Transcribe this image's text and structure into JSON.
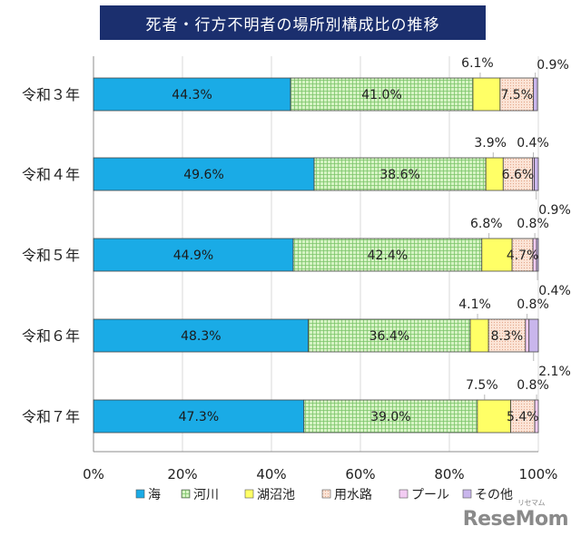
{
  "chart_data": {
    "type": "bar",
    "orientation": "horizontal",
    "stacked": true,
    "title": "死者・行方不明者の場所別構成比の推移",
    "categories": [
      "令和３年",
      "令和４年",
      "令和５年",
      "令和６年",
      "令和７年"
    ],
    "series": [
      {
        "name": "海",
        "color": "#1aabe6",
        "pattern": "solid",
        "values": [
          44.3,
          49.6,
          44.9,
          48.3,
          47.3
        ],
        "labels": [
          "44.3%",
          "49.6%",
          "44.9%",
          "48.3%",
          "47.3%"
        ]
      },
      {
        "name": "河川",
        "color": "#c9f0b4",
        "pattern": "grid",
        "values": [
          41.0,
          38.6,
          42.4,
          36.4,
          39.0
        ],
        "labels": [
          "41.0%",
          "38.6%",
          "42.4%",
          "36.4%",
          "39.0%"
        ]
      },
      {
        "name": "湖沼池",
        "color": "#ffff66",
        "pattern": "solid",
        "values": [
          6.1,
          3.9,
          6.8,
          4.1,
          7.5
        ],
        "labels": [
          "6.1%",
          "3.9%",
          "6.8%",
          "4.1%",
          "7.5%"
        ]
      },
      {
        "name": "用水路",
        "color": "#fbe0d0",
        "pattern": "dots",
        "values": [
          7.5,
          6.6,
          4.7,
          8.3,
          5.4
        ],
        "labels": [
          "7.5%",
          "6.6%",
          "4.7%",
          "8.3%",
          "5.4%"
        ]
      },
      {
        "name": "プール",
        "color": "#f3ccf3",
        "pattern": "solid",
        "values": [
          0.0,
          0.4,
          0.8,
          0.8,
          0.8
        ],
        "labels": [
          "",
          "0.4%",
          "0.8%",
          "0.8%",
          "0.8%"
        ]
      },
      {
        "name": "その他",
        "color": "#c9b6ec",
        "pattern": "solid",
        "values": [
          0.9,
          0.9,
          0.4,
          2.1,
          0.0
        ],
        "labels": [
          "0.9%",
          "0.9%",
          "0.4%",
          "2.1%",
          ""
        ]
      }
    ],
    "xlim": [
      0,
      100
    ],
    "xticks": [
      "0%",
      "20%",
      "40%",
      "60%",
      "80%",
      "100%"
    ],
    "legend": "bottom",
    "grid": "vertical"
  },
  "logo": {
    "text": "ReseMom",
    "sub": "リセマム"
  }
}
